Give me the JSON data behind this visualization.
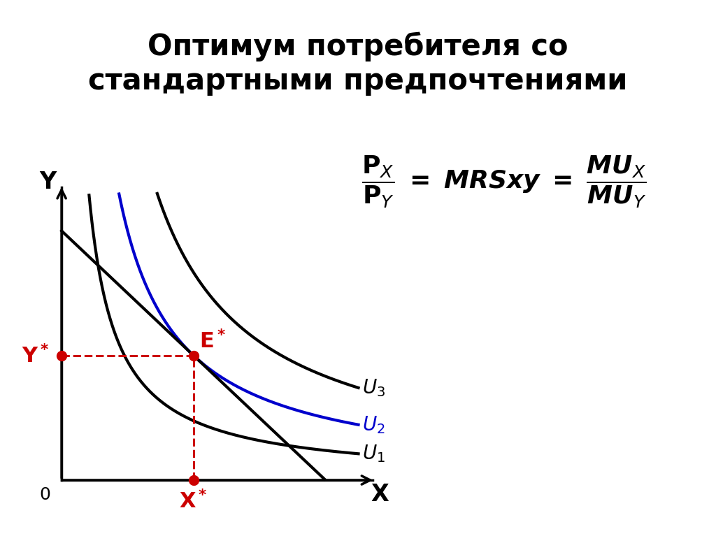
{
  "title": "Оптимум потребителя со\nстандартными предпочтениями",
  "title_fontsize": 30,
  "bg_color": "#ffffff",
  "curve_black_lw": 3.0,
  "curve_blue_lw": 3.0,
  "budget_line_lw": 3.0,
  "dashed_color": "#cc0000",
  "dashed_lw": 2.2,
  "point_color": "#cc0000",
  "point_size": 100,
  "E_star_x": 2.8,
  "E_star_y": 3.0,
  "xlabel": "X",
  "ylabel": "Y",
  "xlim": [
    0,
    6.5
  ],
  "ylim": [
    0,
    7.0
  ],
  "U1_k": 4.0,
  "U2_k": 8.4,
  "U3_k": 14.0,
  "budget_slope": -1.071,
  "budget_intercept_y": 6.0,
  "label_fontsize": 22,
  "U_label_fontsize": 20
}
